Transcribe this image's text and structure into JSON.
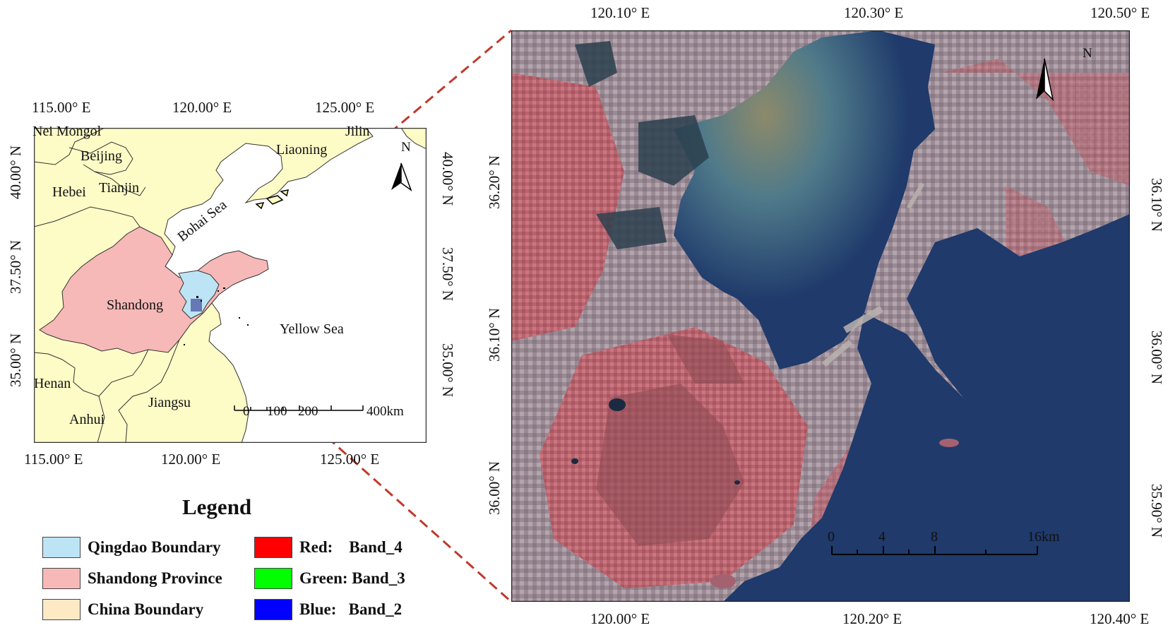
{
  "overview_map": {
    "top_lon_labels": [
      "115.00° E",
      "120.00° E",
      "125.00° E"
    ],
    "bottom_lon_labels": [
      "115.00° E",
      "120.00° E",
      "125.00° E"
    ],
    "left_lat_labels": [
      "40.00° N",
      "37.50° N",
      "35.00° N"
    ],
    "right_lat_labels": [
      "40.00° N",
      "37.50° N",
      "35.00° N"
    ],
    "places": {
      "nei_mongol": "Nei Mongol",
      "jilin": "Jilin",
      "beijing": "Beijing",
      "liaoning": "Liaoning",
      "hebei": "Hebei",
      "tianjin": "Tianjin",
      "bohai_sea": "Bohai Sea",
      "shandong": "Shandong",
      "yellow_sea": "Yellow Sea",
      "henan": "Henan",
      "jiangsu": "Jiangsu",
      "anhui": "Anhui"
    },
    "north_arrow": "N",
    "scale_labels": [
      "0",
      "100",
      "200",
      "400km"
    ],
    "colors": {
      "china": "#fdfbc6",
      "shandong": "#f7b8b8",
      "qingdao": "#bde4f4",
      "sea": "#ffffff"
    }
  },
  "detail_map": {
    "top_lon_labels": [
      "120.10° E",
      "120.30° E",
      "120.50° E"
    ],
    "bottom_lon_labels": [
      "120.00° E",
      "120.20° E",
      "120.40° E"
    ],
    "left_lat_labels": [
      "36.20° N",
      "36.10° N",
      "36.00° N"
    ],
    "right_lat_labels": [
      "36.10° N",
      "36.00° N",
      "35.90° N"
    ],
    "north_arrow": "N",
    "scale_labels": [
      "0",
      "4",
      "8",
      "16km"
    ],
    "colors": {
      "sea": "#1f3a6b",
      "land": "#9a5e6a"
    }
  },
  "legend": {
    "title": "Legend",
    "items": [
      {
        "label": "Qingdao Boundary",
        "color": "#bde4f4"
      },
      {
        "label": "Shandong Province",
        "color": "#f7b8b8"
      },
      {
        "label": "China Boundary",
        "color": "#fde9c4"
      },
      {
        "label": "Red:    Band_4",
        "color": "#ff0000"
      },
      {
        "label": "Green: Band_3",
        "color": "#00ff00"
      },
      {
        "label": "Blue:   Band_2",
        "color": "#0000ff"
      }
    ]
  }
}
